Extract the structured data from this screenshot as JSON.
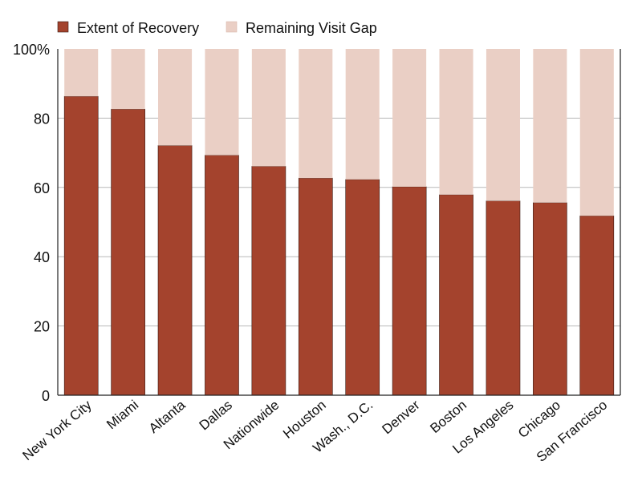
{
  "chart_data": {
    "type": "bar",
    "stacked": true,
    "categories": [
      "New York City",
      "Miami",
      "Altanta",
      "Dallas",
      "Nationwide",
      "Houston",
      "Wash., D.C.",
      "Denver",
      "Boston",
      "Los Angeles",
      "Chicago",
      "San Francisco"
    ],
    "series": [
      {
        "name": "Extent of Recovery",
        "values": [
          86.3,
          82.6,
          72.1,
          69.3,
          66.1,
          62.7,
          62.3,
          60.2,
          57.9,
          56.1,
          55.6,
          51.8
        ],
        "color": "#a4432d"
      },
      {
        "name": "Remaining Visit Gap",
        "values": [
          13.7,
          17.4,
          27.9,
          30.7,
          33.9,
          37.3,
          37.7,
          39.8,
          42.1,
          43.9,
          44.4,
          48.2
        ],
        "color": "#eacfc5"
      }
    ],
    "yticks": [
      "0",
      "20",
      "40",
      "60",
      "80",
      "100%"
    ],
    "ytick_values": [
      0,
      20,
      40,
      60,
      80,
      100
    ],
    "ylim": [
      0,
      100
    ],
    "grid": true,
    "legend_position": "top-left"
  }
}
